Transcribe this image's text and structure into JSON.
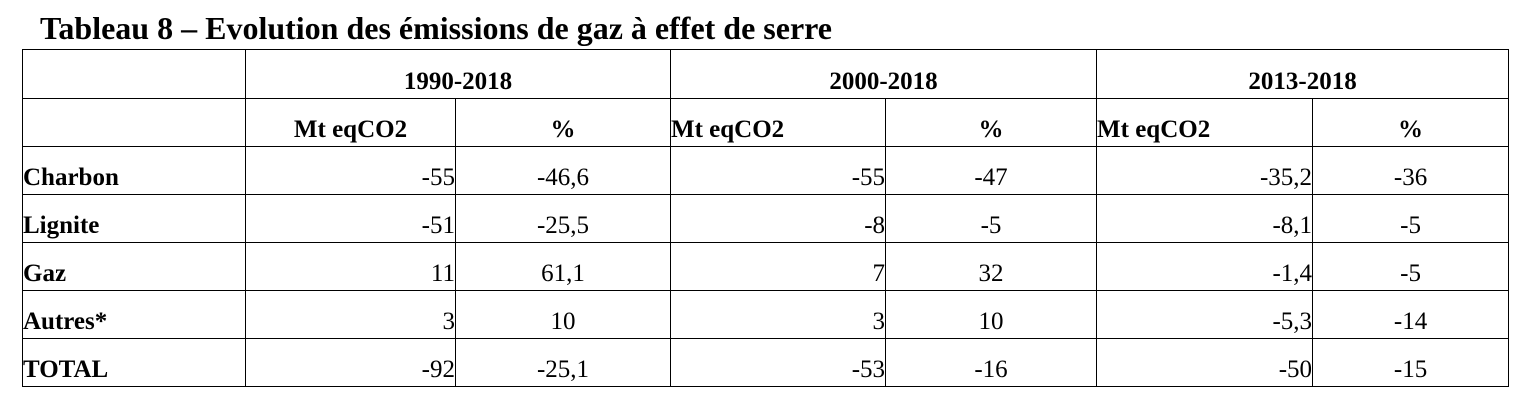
{
  "title": "Tableau 8 – Evolution des émissions de gaz à effet de serre",
  "periods": [
    "1990-2018",
    "2000-2018",
    "2013-2018"
  ],
  "unit_labels": {
    "mt": "Mt eqCO2",
    "pct": "%"
  },
  "rows": [
    {
      "label": "Charbon",
      "values": [
        "-55",
        "-46,6",
        "-55",
        "-47",
        "-35,2",
        "-36"
      ]
    },
    {
      "label": "Lignite",
      "values": [
        "-51",
        "-25,5",
        "-8",
        "-5",
        "-8,1",
        "-5"
      ]
    },
    {
      "label": "Gaz",
      "values": [
        "11",
        "61,1",
        "7",
        "32",
        "-1,4",
        "-5"
      ]
    },
    {
      "label": "Autres*",
      "values": [
        "3",
        "10",
        "3",
        "10",
        "-5,3",
        "-14"
      ]
    },
    {
      "label": "TOTAL",
      "values": [
        "-92",
        "-25,1",
        "-53",
        "-16",
        "-50",
        "-15"
      ]
    }
  ]
}
